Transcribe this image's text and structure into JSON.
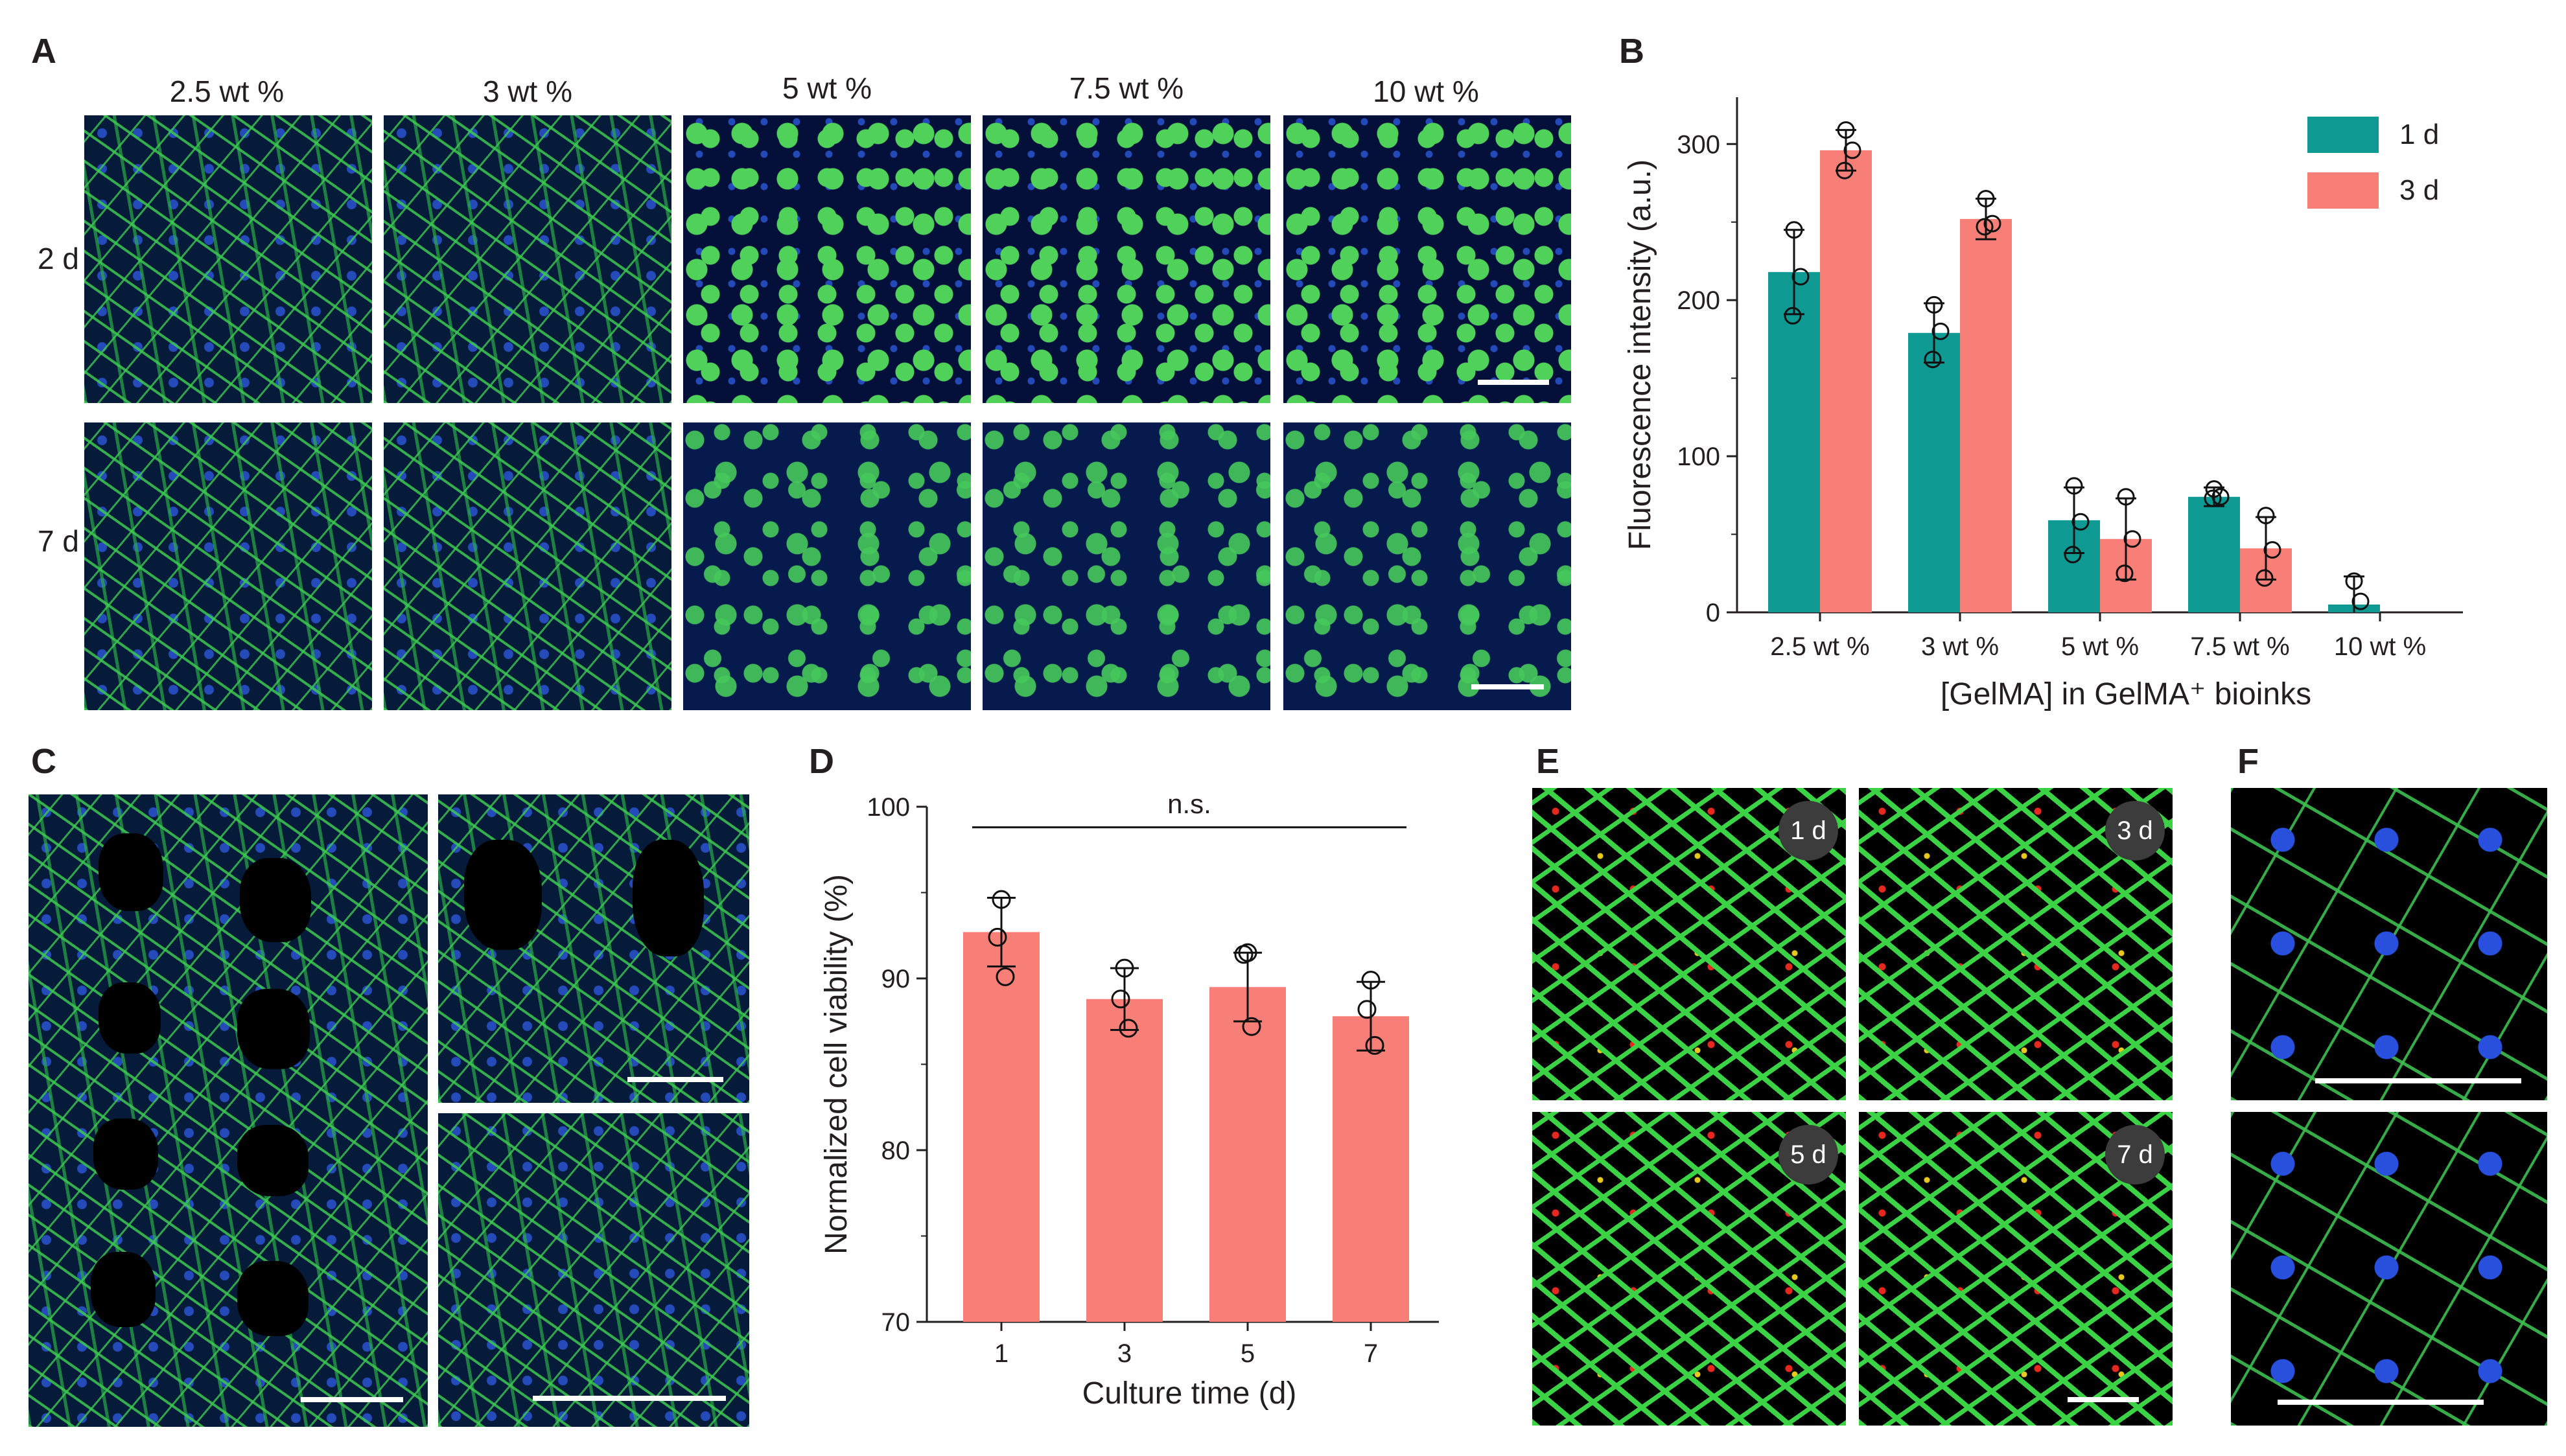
{
  "panels": {
    "a": {
      "label": "A",
      "columns": [
        "2.5 wt %",
        "3 wt %",
        "5 wt %",
        "7.5 wt %",
        "10 wt %"
      ],
      "rows": [
        "2 d",
        "7 d"
      ]
    },
    "b": {
      "label": "B"
    },
    "c": {
      "label": "C"
    },
    "d": {
      "label": "D"
    },
    "e": {
      "label": "E",
      "badges": [
        "1 d",
        "3 d",
        "5 d",
        "7 d"
      ]
    },
    "f": {
      "label": "F"
    }
  },
  "colors": {
    "teal": "#0e9a93",
    "salmon": "#f77f78",
    "axis": "#231f20"
  },
  "chart_data": [
    {
      "id": "B",
      "type": "bar",
      "categories": [
        "2.5 wt %",
        "3 wt %",
        "5 wt %",
        "7.5 wt %",
        "10 wt %"
      ],
      "series": [
        {
          "name": "1 d",
          "values": [
            218,
            179,
            59,
            74,
            5
          ],
          "err": [
            27,
            19,
            21,
            6,
            18
          ],
          "points": [
            [
              245,
              215,
              190
            ],
            [
              197,
              180,
              162
            ],
            [
              81,
              58,
              37
            ],
            [
              79,
              74,
              73
            ],
            [
              20,
              7,
              null
            ]
          ]
        },
        {
          "name": "3 d",
          "values": [
            296,
            252,
            47,
            41,
            null
          ],
          "err": [
            13,
            13,
            26,
            20,
            null
          ],
          "points": [
            [
              309,
              296,
              283
            ],
            [
              265,
              249,
              247
            ],
            [
              74,
              47,
              25
            ],
            [
              62,
              40,
              22
            ],
            [
              null,
              null,
              null
            ]
          ]
        }
      ],
      "ylabel": "Fluorescence intensity (a.u.)",
      "xlabel": "[GelMA] in GelMA⁺ bioinks",
      "yticks": [
        0,
        100,
        200,
        300
      ],
      "ylim": [
        0,
        330
      ],
      "legend": "top-right"
    },
    {
      "id": "D",
      "type": "bar",
      "categories": [
        "1",
        "3",
        "5",
        "7"
      ],
      "values": [
        92.7,
        88.8,
        89.5,
        87.8
      ],
      "err": [
        2.0,
        1.8,
        2.0,
        2.0
      ],
      "points": [
        [
          94.6,
          92.4,
          90.1
        ],
        [
          90.6,
          88.8,
          87.1
        ],
        [
          91.5,
          91.4,
          87.2
        ],
        [
          89.9,
          88.2,
          86.1
        ]
      ],
      "ylabel": "Normalized cell viability (%)",
      "xlabel": "Culture time (d)",
      "yticks": [
        70,
        80,
        90,
        100
      ],
      "ylim": [
        70,
        100
      ],
      "annotation": "n.s."
    }
  ]
}
